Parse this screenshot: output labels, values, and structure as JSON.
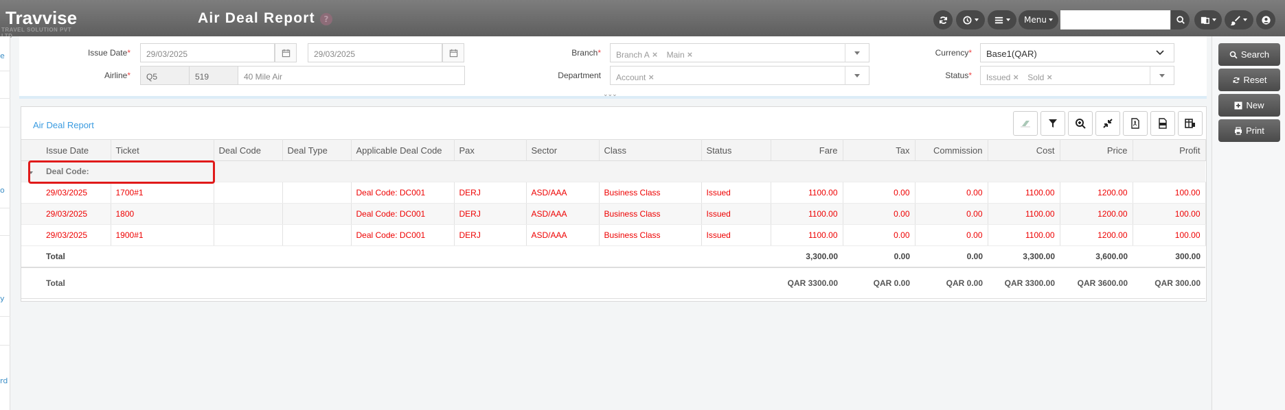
{
  "header": {
    "logo_text": "Travvise",
    "logo_tagline": "TRAVEL SOLUTION PVT LTD",
    "title": "Air Deal Report",
    "help": "?",
    "menu_label": "Menu",
    "search_placeholder": ""
  },
  "left_strip": {
    "fragments": [
      "e",
      "o",
      "y",
      "rd"
    ]
  },
  "filters": {
    "issue_date_label": "Issue Date",
    "issue_date_from": "29/03/2025",
    "issue_date_to": "29/03/2025",
    "airline_label": "Airline",
    "airline_code": "Q5",
    "airline_number": "519",
    "airline_name": "40 Mile Air",
    "branch_label": "Branch",
    "branch_tags": [
      "Branch A",
      "Main"
    ],
    "department_label": "Department",
    "department_tags": [
      "Account"
    ],
    "currency_label": "Currency",
    "currency_value": "Base1(QAR)",
    "status_label": "Status",
    "status_tags": [
      "Issued",
      "Sold"
    ],
    "required_mark": "*",
    "expand_icon": "double-chevron-down-icon"
  },
  "actions": {
    "search": "Search",
    "reset": "Reset",
    "new": "New",
    "print": "Print"
  },
  "report": {
    "title": "Air Deal Report",
    "toolbar_icons": [
      "eraser-icon",
      "filter-icon",
      "zoom-in-icon",
      "collapse-icon",
      "pdf-icon",
      "xlsx-icon",
      "column-chooser-icon"
    ],
    "columns": [
      "Issue Date",
      "Ticket",
      "Deal Code",
      "Deal Type",
      "Applicable Deal Code",
      "Pax",
      "Sector",
      "Class",
      "Status",
      "Fare",
      "Tax",
      "Commission",
      "Cost",
      "Price",
      "Profit"
    ],
    "group_label": "Deal Code:",
    "rows": [
      [
        "29/03/2025",
        "1700#1",
        "",
        "",
        "Deal Code: DC001",
        "DERJ",
        "ASD/AAA",
        "Business Class",
        "Issued",
        "1100.00",
        "0.00",
        "0.00",
        "1100.00",
        "1200.00",
        "100.00"
      ],
      [
        "29/03/2025",
        "1800",
        "",
        "",
        "Deal Code: DC001",
        "DERJ",
        "ASD/AAA",
        "Business Class",
        "Issued",
        "1100.00",
        "0.00",
        "0.00",
        "1100.00",
        "1200.00",
        "100.00"
      ],
      [
        "29/03/2025",
        "1900#1",
        "",
        "",
        "Deal Code: DC001",
        "DERJ",
        "ASD/AAA",
        "Business Class",
        "Issued",
        "1100.00",
        "0.00",
        "0.00",
        "1100.00",
        "1200.00",
        "100.00"
      ]
    ],
    "subtotal": {
      "label": "Total",
      "fare": "3,300.00",
      "tax": "0.00",
      "commission": "0.00",
      "cost": "3,300.00",
      "price": "3,600.00",
      "profit": "300.00"
    },
    "grand_total": {
      "label": "Total",
      "fare": "QAR 3300.00",
      "tax": "QAR 0.00",
      "commission": "QAR 0.00",
      "cost": "QAR 3300.00",
      "price": "QAR 3600.00",
      "profit": "QAR 300.00"
    }
  },
  "colors": {
    "header_bg": "#6b6b6b",
    "accent_blue": "#3a9be0",
    "row_text": "#e00000",
    "highlight": "#e01a1a"
  }
}
